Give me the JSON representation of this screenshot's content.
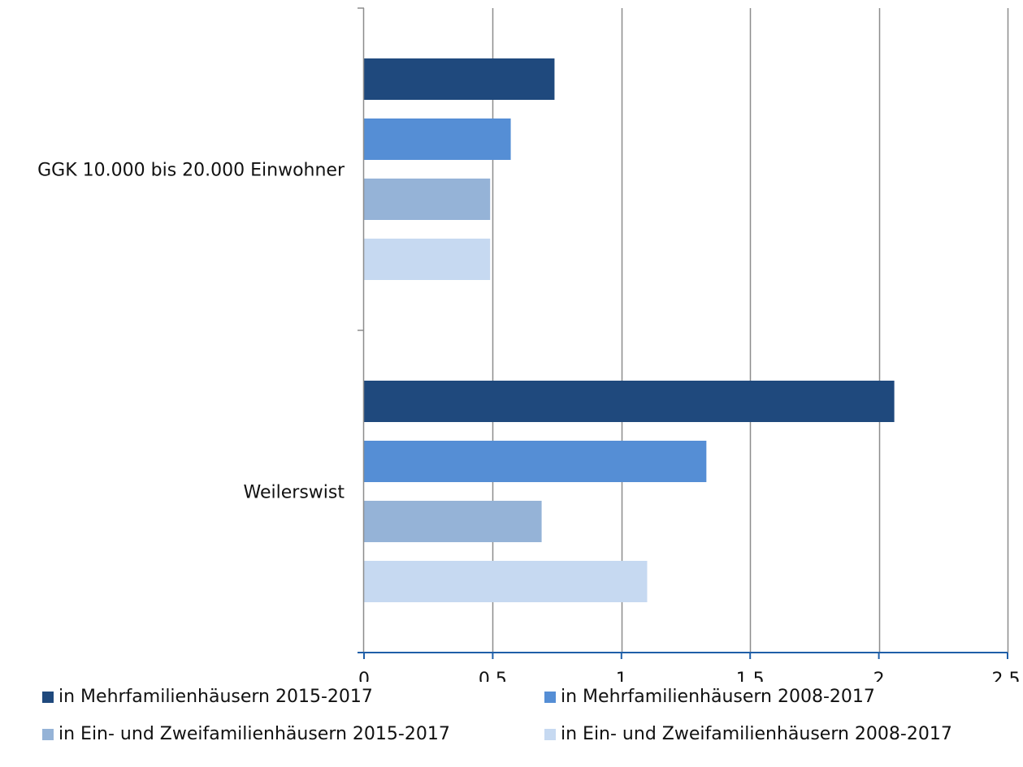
{
  "chart_data": {
    "type": "bar",
    "orientation": "horizontal",
    "title": "",
    "xlabel": "",
    "ylabel": "",
    "categories": [
      "GGK 10.000 bis 20.000 Einwohner",
      "Weilerswist"
    ],
    "series": [
      {
        "name": "in Mehrfamilienhäusern 2015-2017",
        "values": [
          0.74,
          2.06
        ],
        "color": "#1f497d"
      },
      {
        "name": "in Mehrfamilienhäusern 2008-2017",
        "values": [
          0.57,
          1.33
        ],
        "color": "#558ed5"
      },
      {
        "name": "in Ein- und Zweifamilienhäusern 2015-2017",
        "values": [
          0.49,
          0.69
        ],
        "color": "#95b3d7"
      },
      {
        "name": "in Ein- und Zweifamilienhäusern 2008-2017",
        "values": [
          0.49,
          1.1
        ],
        "color": "#c6d9f1"
      }
    ],
    "xlim": [
      0,
      2.5
    ],
    "x_ticks": [
      0,
      0.5,
      1,
      1.5,
      2,
      2.5
    ],
    "x_tick_labels": [
      "0",
      "0,5",
      "1",
      "1,5",
      "2",
      "2,5"
    ],
    "grid": "vertical",
    "legend_position": "bottom",
    "colors": {
      "gridline": "#8c8c8c",
      "axis_x": "#1f5fa8",
      "axis_y": "#8c8c8c",
      "text": "#111111"
    }
  },
  "legend": {
    "items": [
      {
        "label": "in Mehrfamilienhäusern 2015-2017",
        "color": "#1f497d",
        "series": 0
      },
      {
        "label": "in Mehrfamilienhäusern 2008-2017",
        "color": "#558ed5",
        "series": 1
      },
      {
        "label": "in Ein- und Zweifamilienhäusern 2015-2017",
        "color": "#95b3d7",
        "series": 2
      },
      {
        "label": "in Ein- und Zweifamilienhäusern 2008-2017",
        "color": "#c6d9f1",
        "series": 3
      }
    ]
  }
}
